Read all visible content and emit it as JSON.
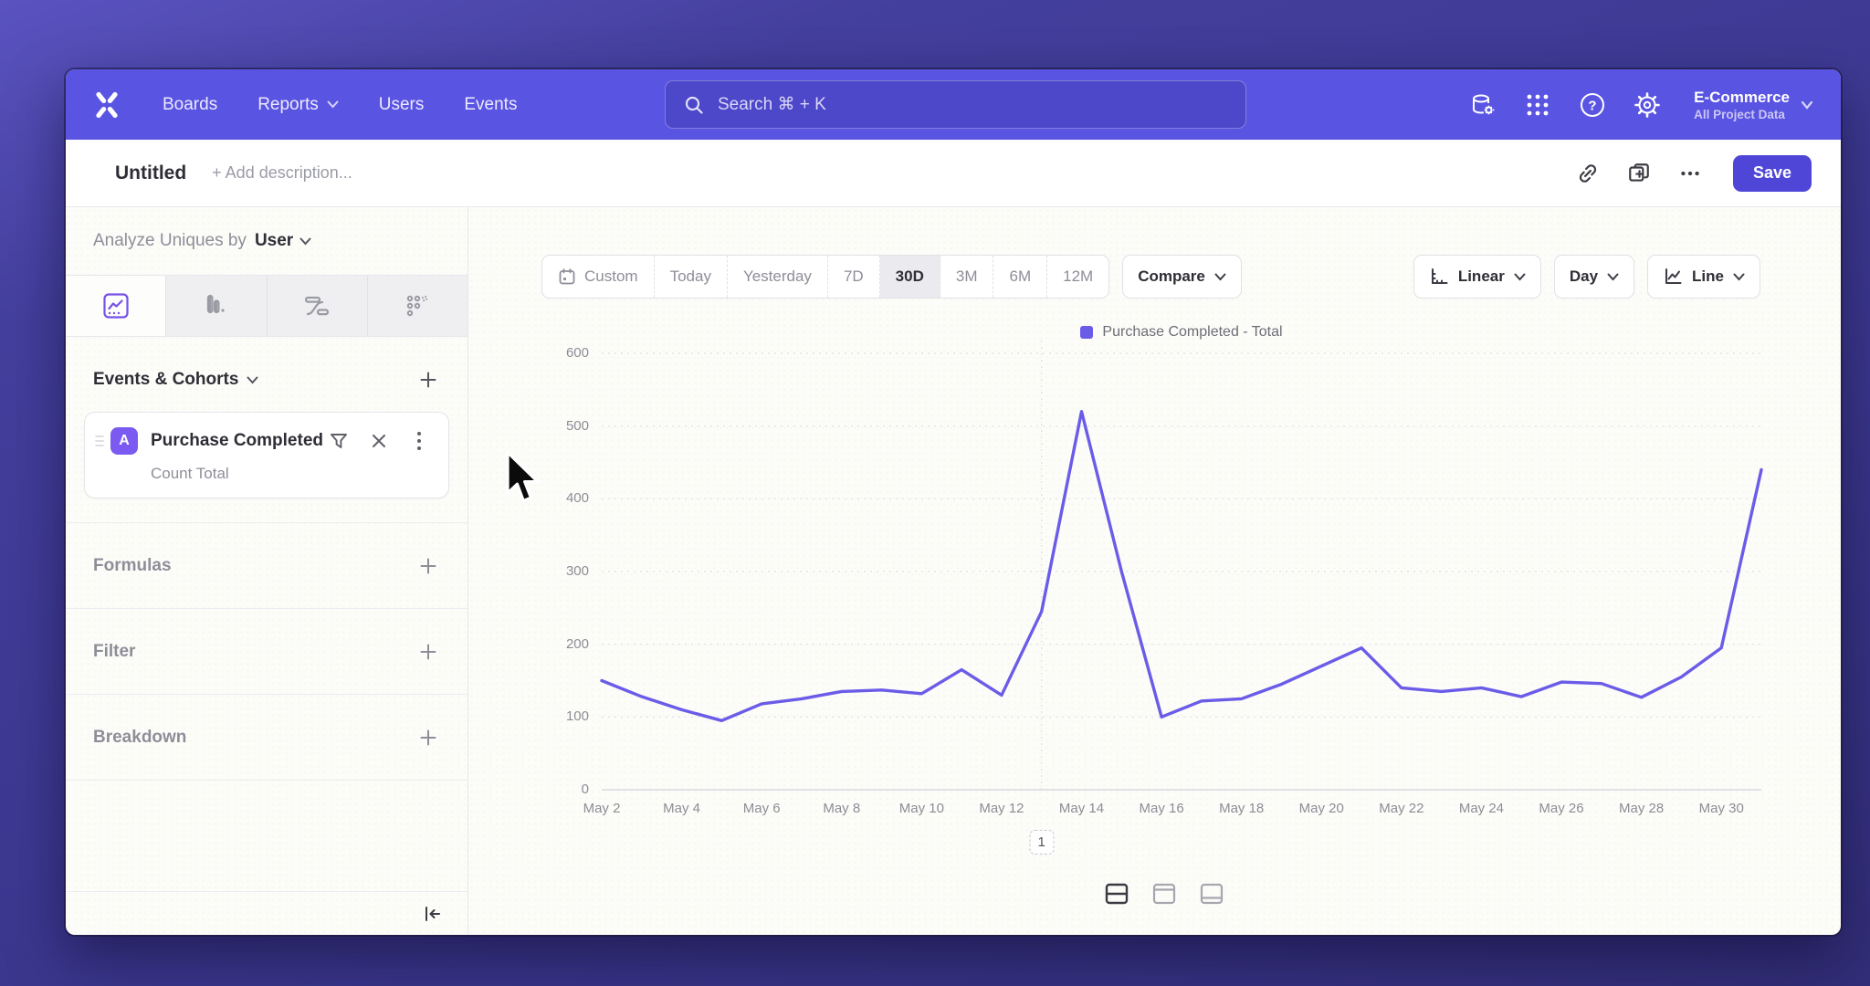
{
  "nav": {
    "items": [
      {
        "label": "Boards"
      },
      {
        "label": "Reports"
      },
      {
        "label": "Users"
      },
      {
        "label": "Events"
      }
    ],
    "search_placeholder": "Search  ⌘ + K",
    "right_icons": [
      "data-settings-icon",
      "apps-grid-icon",
      "help-icon",
      "settings-gear-icon"
    ],
    "project": {
      "name": "E-Commerce",
      "subtitle": "All Project Data"
    }
  },
  "toolbar": {
    "title": "Untitled",
    "description_placeholder": "+ Add description...",
    "action_icons": [
      "copy-link-icon",
      "duplicate-icon",
      "more-icon"
    ],
    "save_label": "Save"
  },
  "sidebar": {
    "analyze_prefix": "Analyze Uniques by",
    "analyze_value": "User",
    "tabs": [
      "insights-chart-tab",
      "bar-chart-tab",
      "flows-tab",
      "retention-tab"
    ],
    "active_tab_index": 0,
    "events_section_title": "Events & Cohorts",
    "event_card": {
      "badge": "A",
      "title": "Purchase Completed",
      "subtitle": "Count Total"
    },
    "sections": [
      {
        "label": "Formulas"
      },
      {
        "label": "Filter"
      },
      {
        "label": "Breakdown"
      }
    ]
  },
  "controls": {
    "date_ranges": [
      "Custom",
      "Today",
      "Yesterday",
      "7D",
      "30D",
      "3M",
      "6M",
      "12M"
    ],
    "active_range": "30D",
    "compare_label": "Compare",
    "scale_label": "Linear",
    "interval_label": "Day",
    "chart_type_label": "Line"
  },
  "pagination_label": "1",
  "chart_data": {
    "type": "line",
    "title": "",
    "legend_position": "top-center",
    "legend": [
      {
        "label": "Purchase Completed - Total",
        "color": "#6b5ce8"
      }
    ],
    "x": [
      "May 2",
      "May 3",
      "May 4",
      "May 5",
      "May 6",
      "May 7",
      "May 8",
      "May 9",
      "May 10",
      "May 11",
      "May 12",
      "May 13",
      "May 14",
      "May 15",
      "May 16",
      "May 17",
      "May 18",
      "May 19",
      "May 20",
      "May 21",
      "May 22",
      "May 23",
      "May 24",
      "May 25",
      "May 26",
      "May 27",
      "May 28",
      "May 29",
      "May 30",
      "May 31"
    ],
    "x_tick_step": 2,
    "series": [
      {
        "name": "Purchase Completed - Total",
        "color": "#6b5ce8",
        "values": [
          150,
          128,
          110,
          95,
          118,
          125,
          135,
          137,
          132,
          165,
          130,
          245,
          520,
          300,
          100,
          122,
          125,
          145,
          170,
          195,
          140,
          135,
          140,
          128,
          148,
          146,
          127,
          155,
          195,
          440
        ]
      }
    ],
    "ylim": [
      0,
      600
    ],
    "y_ticks": [
      0,
      100,
      200,
      300,
      400,
      500,
      600
    ],
    "grid": {
      "horizontal": true,
      "vertical_marker_x": "May 13"
    }
  }
}
